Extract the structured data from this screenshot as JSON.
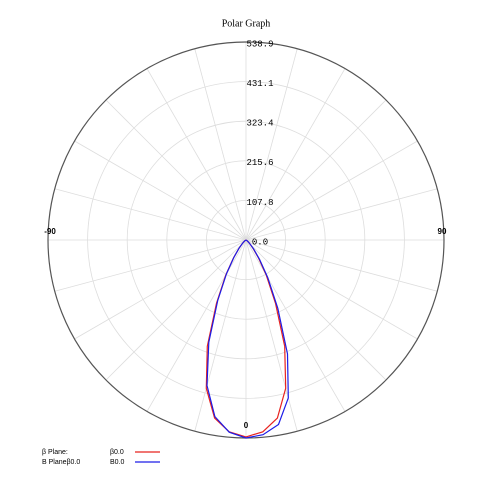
{
  "chart_data": {
    "type": "polar",
    "title": "Polar Graph",
    "x": [
      -90,
      -85,
      -80,
      -75,
      -70,
      -65,
      -60,
      -55,
      -50,
      -45,
      -40,
      -35,
      -30,
      -25,
      -20,
      -15,
      -10,
      -5,
      0,
      5,
      10,
      15,
      20,
      25,
      30,
      35,
      40,
      45,
      50,
      55,
      60,
      65,
      70,
      75,
      80,
      85,
      90
    ],
    "series": [
      {
        "name": "β0.0",
        "color": "#e8231f",
        "values": [
          0,
          0,
          0,
          0,
          0,
          1,
          2,
          4,
          8,
          15,
          30,
          60,
          110,
          190,
          308,
          418,
          492,
          524,
          536,
          524,
          492,
          418,
          308,
          190,
          110,
          60,
          30,
          15,
          8,
          4,
          2,
          1,
          0,
          0,
          0,
          0,
          0
        ]
      },
      {
        "name": "B0.0",
        "color": "#1c1ce8",
        "values": [
          0,
          0,
          0,
          0,
          0,
          1,
          2,
          4,
          8,
          15,
          30,
          58,
          106,
          182,
          296,
          410,
          488,
          525,
          539,
          532,
          510,
          445,
          330,
          205,
          118,
          64,
          32,
          16,
          8,
          4,
          2,
          1,
          0,
          0,
          0,
          0,
          0
        ]
      }
    ],
    "ylim": [
      0,
      538.9
    ],
    "yticks": [
      {
        "value": 0,
        "label": "0.0"
      },
      107.8,
      215.6,
      323.4,
      431.1,
      538.9
    ],
    "angle_ticks": [
      -90,
      0,
      90
    ],
    "plane_labels": [
      "β Plane:",
      "B Planeβ0.0"
    ],
    "grid": true
  }
}
